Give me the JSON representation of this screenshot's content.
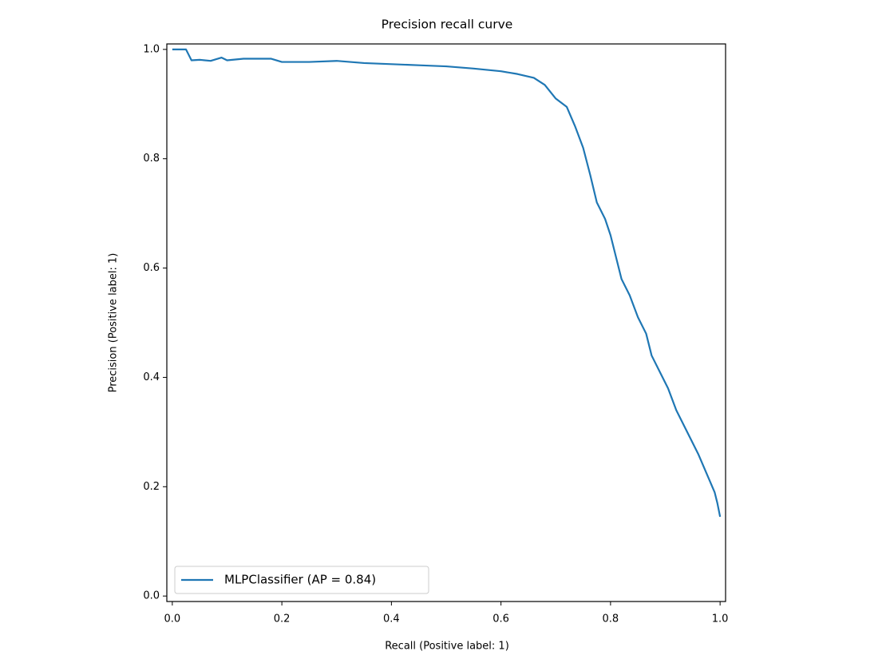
{
  "chart_data": {
    "type": "line",
    "title": "Precision recall curve",
    "x_label": "Recall (Positive label: 1)",
    "y_label": "Precision (Positive label: 1)",
    "xlim": [
      -0.01,
      1.01
    ],
    "ylim": [
      -0.01,
      1.01
    ],
    "xticks": [
      {
        "value": 0,
        "label": "0.0"
      },
      0.2,
      0.4,
      0.6,
      0.8,
      {
        "value": 1,
        "label": "1.0"
      }
    ],
    "yticks": [
      {
        "value": 0,
        "label": "0.0"
      },
      0.2,
      0.4,
      0.6,
      0.8,
      {
        "value": 1,
        "label": "1.0"
      }
    ],
    "legend_position": "lower left",
    "x": [
      0,
      0.025,
      0.03,
      0.035,
      0.05,
      0.07,
      0.09,
      0.1,
      0.13,
      0.18,
      0.2,
      0.25,
      0.3,
      0.35,
      0.4,
      0.45,
      0.5,
      0.55,
      0.6,
      0.63,
      0.66,
      0.68,
      0.7,
      0.72,
      0.735,
      0.75,
      0.763,
      0.775,
      0.79,
      0.8,
      0.81,
      0.82,
      0.835,
      0.85,
      0.865,
      0.875,
      0.89,
      0.905,
      0.92,
      0.94,
      0.96,
      0.975,
      0.99,
      0.995,
      1.0
    ],
    "series": [
      {
        "name": "MLPClassifier (AP = 0.84)",
        "color": "#1f77b4",
        "values": [
          1.0,
          1.0,
          0.99,
          0.98,
          0.981,
          0.979,
          0.985,
          0.98,
          0.983,
          0.983,
          0.977,
          0.977,
          0.979,
          0.975,
          0.973,
          0.971,
          0.969,
          0.965,
          0.96,
          0.955,
          0.948,
          0.935,
          0.91,
          0.895,
          0.86,
          0.82,
          0.77,
          0.72,
          0.69,
          0.66,
          0.62,
          0.58,
          0.55,
          0.51,
          0.48,
          0.44,
          0.41,
          0.38,
          0.34,
          0.3,
          0.26,
          0.225,
          0.19,
          0.17,
          0.145
        ]
      }
    ]
  }
}
